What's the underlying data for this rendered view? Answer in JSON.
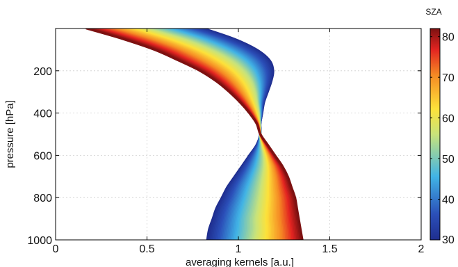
{
  "chart_data": {
    "type": "line",
    "title": "",
    "xlabel": "averaging kernels [a.u.]",
    "ylabel": "pressure [hPa]",
    "xlim": [
      0,
      2
    ],
    "ylim": [
      1000,
      0
    ],
    "y_reversed": true,
    "x_ticks": [
      "0",
      "0.5",
      "1",
      "1.5",
      "2"
    ],
    "y_ticks": [
      "200",
      "400",
      "600",
      "800",
      "1000"
    ],
    "grid": true,
    "colorbar": {
      "title": "SZA",
      "range": [
        30,
        82
      ],
      "ticks": [
        "30",
        "40",
        "50",
        "60",
        "70",
        "80"
      ],
      "colormap": "jet"
    },
    "series_description": "family of averaging-kernel curves, one per SZA from ~30 (blue) to ~82 (dark red)",
    "pressure": [
      0,
      50,
      100,
      150,
      200,
      250,
      300,
      350,
      400,
      450,
      500,
      550,
      600,
      650,
      700,
      750,
      800,
      850,
      900,
      950,
      1000
    ],
    "curves": [
      {
        "sza": 30,
        "values": [
          0.81,
          0.98,
          1.1,
          1.17,
          1.19,
          1.18,
          1.16,
          1.14,
          1.13,
          1.12,
          1.12,
          1.1,
          1.06,
          1.02,
          0.98,
          0.94,
          0.91,
          0.88,
          0.86,
          0.84,
          0.83
        ]
      },
      {
        "sza": 55,
        "values": [
          0.5,
          0.7,
          0.85,
          0.96,
          1.03,
          1.07,
          1.09,
          1.1,
          1.11,
          1.115,
          1.12,
          1.13,
          1.14,
          1.14,
          1.13,
          1.12,
          1.11,
          1.1,
          1.09,
          1.09,
          1.08
        ]
      },
      {
        "sza": 82,
        "values": [
          0.17,
          0.37,
          0.54,
          0.67,
          0.79,
          0.88,
          0.95,
          1.01,
          1.06,
          1.1,
          1.12,
          1.16,
          1.2,
          1.24,
          1.27,
          1.29,
          1.31,
          1.32,
          1.33,
          1.34,
          1.35
        ]
      }
    ]
  }
}
